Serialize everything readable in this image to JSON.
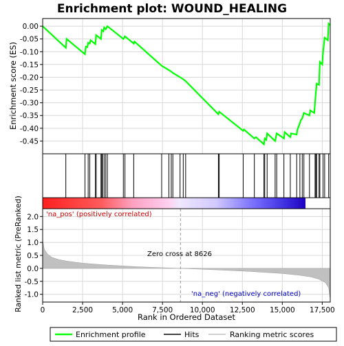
{
  "chart_data": {
    "type": "line",
    "title": "Enrichment plot: WOUND_HEALING",
    "es_panel": {
      "ylabel": "Enrichment score (ES)",
      "ylim": [
        -0.5,
        0.03
      ],
      "yticks": [
        "0.00",
        "-0.05",
        "-0.10",
        "-0.15",
        "-0.20",
        "-0.25",
        "-0.30",
        "-0.35",
        "-0.40",
        "-0.45"
      ],
      "ytick_values": [
        0.0,
        -0.05,
        -0.1,
        -0.15,
        -0.2,
        -0.25,
        -0.3,
        -0.35,
        -0.4,
        -0.45
      ],
      "grid": true,
      "series_color": "#00ff00",
      "points": [
        [
          0,
          0.0
        ],
        [
          1450,
          -0.085
        ],
        [
          1500,
          -0.05
        ],
        [
          2650,
          -0.11
        ],
        [
          2700,
          -0.08
        ],
        [
          2800,
          -0.082
        ],
        [
          2850,
          -0.065
        ],
        [
          2950,
          -0.068
        ],
        [
          3000,
          -0.055
        ],
        [
          3300,
          -0.07
        ],
        [
          3350,
          -0.035
        ],
        [
          3650,
          -0.05
        ],
        [
          3700,
          -0.015
        ],
        [
          3800,
          -0.02
        ],
        [
          3850,
          -0.005
        ],
        [
          3950,
          -0.012
        ],
        [
          4050,
          0.0
        ],
        [
          5050,
          -0.05
        ],
        [
          5150,
          -0.04
        ],
        [
          5700,
          -0.068
        ],
        [
          5750,
          -0.06
        ],
        [
          7450,
          -0.155
        ],
        [
          7900,
          -0.172
        ],
        [
          8050,
          -0.178
        ],
        [
          8150,
          -0.183
        ],
        [
          8600,
          -0.2
        ],
        [
          8800,
          -0.208
        ],
        [
          8950,
          -0.215
        ],
        [
          11000,
          -0.345
        ],
        [
          11050,
          -0.335
        ],
        [
          12550,
          -0.41
        ],
        [
          12600,
          -0.405
        ],
        [
          13250,
          -0.44
        ],
        [
          13350,
          -0.435
        ],
        [
          13850,
          -0.463
        ],
        [
          13900,
          -0.44
        ],
        [
          14000,
          -0.445
        ],
        [
          14050,
          -0.42
        ],
        [
          14550,
          -0.45
        ],
        [
          14650,
          -0.42
        ],
        [
          15100,
          -0.44
        ],
        [
          15150,
          -0.415
        ],
        [
          15500,
          -0.435
        ],
        [
          15550,
          -0.42
        ],
        [
          15900,
          -0.425
        ],
        [
          15950,
          -0.405
        ],
        [
          16100,
          -0.38
        ],
        [
          16150,
          -0.37
        ],
        [
          16250,
          -0.36
        ],
        [
          16350,
          -0.34
        ],
        [
          16700,
          -0.35
        ],
        [
          16750,
          -0.33
        ],
        [
          17000,
          -0.34
        ],
        [
          17050,
          -0.3
        ],
        [
          17100,
          -0.26
        ],
        [
          17150,
          -0.225
        ],
        [
          17300,
          -0.23
        ],
        [
          17350,
          -0.14
        ],
        [
          17500,
          -0.15
        ],
        [
          17550,
          -0.1
        ],
        [
          17650,
          -0.045
        ],
        [
          17850,
          -0.055
        ],
        [
          17900,
          0.01
        ],
        [
          18000,
          0.005
        ]
      ]
    },
    "hits": [
      1450,
      2650,
      2850,
      2950,
      3300,
      3350,
      3650,
      3700,
      3750,
      3850,
      3950,
      4050,
      5050,
      5150,
      5700,
      7450,
      7900,
      8050,
      8150,
      8600,
      8800,
      8950,
      11000,
      11050,
      12550,
      13250,
      13850,
      13900,
      14050,
      14550,
      14650,
      15100,
      15500,
      15900,
      16100,
      16250,
      16350,
      16700,
      17050,
      17100,
      17150,
      17300,
      17350,
      17550,
      17650,
      17900
    ],
    "rank_panel": {
      "ylabel": "Ranked list metric (PreRanked)",
      "ylim": [
        -1.3,
        2.3
      ],
      "yticks": [
        "2.0",
        "1.5",
        "1.0",
        "0.5",
        "0.0",
        "-0.5",
        "-1.0"
      ],
      "ytick_values": [
        2.0,
        1.5,
        1.0,
        0.5,
        0.0,
        -0.5,
        -1.0
      ],
      "grid": true,
      "metric_curve": [
        [
          0,
          1.1
        ],
        [
          100,
          0.75
        ],
        [
          300,
          0.55
        ],
        [
          600,
          0.42
        ],
        [
          1000,
          0.34
        ],
        [
          1500,
          0.28
        ],
        [
          2500,
          0.2
        ],
        [
          4000,
          0.13
        ],
        [
          6000,
          0.06
        ],
        [
          8626,
          0.0
        ],
        [
          11000,
          -0.06
        ],
        [
          13000,
          -0.12
        ],
        [
          15000,
          -0.2
        ],
        [
          16000,
          -0.26
        ],
        [
          16800,
          -0.33
        ],
        [
          17300,
          -0.42
        ],
        [
          17700,
          -0.55
        ],
        [
          17900,
          -0.75
        ],
        [
          18000,
          -1.2
        ]
      ],
      "pos_label": "'na_pos' (positively correlated)",
      "neg_label": "'na_neg' (negatively correlated)",
      "zero_cross_label": "Zero cross at 8626",
      "zero_cross": 8626
    },
    "xlabel": "Rank in Ordered Dataset",
    "xlim": [
      0,
      18000
    ],
    "xticks": [
      "0",
      "2,500",
      "5,000",
      "7,500",
      "10,000",
      "12,500",
      "15,000",
      "17,500"
    ],
    "xtick_values": [
      0,
      2500,
      5000,
      7500,
      10000,
      12500,
      15000,
      17500
    ],
    "legend": {
      "placement": "bottom",
      "items": [
        {
          "label": "Enrichment profile",
          "color": "#00ff00"
        },
        {
          "label": "Hits",
          "color": "#000000"
        },
        {
          "label": "Ranking metric scores",
          "color": "#c0c0c0"
        }
      ]
    }
  }
}
